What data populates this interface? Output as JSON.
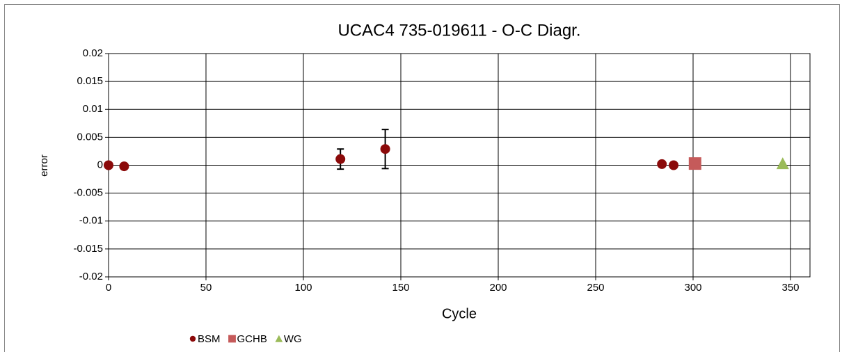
{
  "chart_data": {
    "type": "scatter",
    "title": "UCAC4 735-019611 - O-C Diagr.",
    "xlabel": "Cycle",
    "ylabel": "error",
    "xlim": [
      0,
      360
    ],
    "xticks": [
      0,
      50,
      100,
      150,
      200,
      250,
      300,
      350
    ],
    "ylim": [
      -0.02,
      0.02
    ],
    "yticks": [
      -0.02,
      -0.015,
      -0.01,
      -0.005,
      0,
      0.005,
      0.01,
      0.015,
      0.02
    ],
    "grid": true,
    "legend": "bottom",
    "series": [
      {
        "name": "BSM",
        "color": "#8b0a0a",
        "marker": "circle",
        "x": [
          0,
          8,
          119,
          142,
          284,
          290
        ],
        "values": [
          0,
          -0.0002,
          0.0011,
          0.0029,
          0.0002,
          0
        ],
        "errors": [
          0.0001,
          0.0001,
          0.0018,
          0.0035,
          0.0003,
          0.0002
        ]
      },
      {
        "name": "GCHB",
        "color": "#c55a5a",
        "marker": "square",
        "x": [
          301
        ],
        "values": [
          0.0003
        ]
      },
      {
        "name": "WG",
        "color": "#9bbb59",
        "marker": "triangle",
        "x": [
          346
        ],
        "values": [
          0.0003
        ]
      }
    ]
  }
}
